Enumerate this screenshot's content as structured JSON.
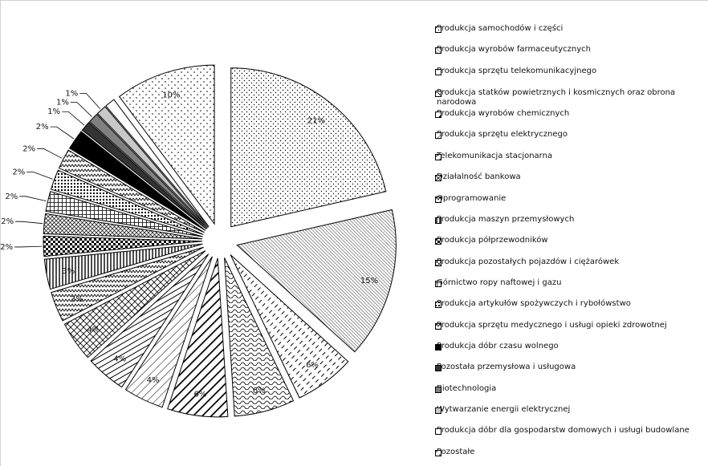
{
  "chart_data": {
    "type": "pie",
    "slices": [
      {
        "name": "Produkcja samochodów i części",
        "value": 21,
        "label": "21%",
        "pattern": "dots"
      },
      {
        "name": "Produkcja wyrobów farmaceutycznych",
        "value": 15,
        "label": "15%",
        "pattern": "diag-dense"
      },
      {
        "name": "Produkcja sprzętu telekomunikacyjnego",
        "value": 6,
        "label": "6%",
        "pattern": "dashes"
      },
      {
        "name": "Produkcja statków powietrznych i kosmicznych oraz obrona narodowa",
        "value": 6,
        "label": "6%",
        "pattern": "waves"
      },
      {
        "name": "Produkcja wyrobów chemicznych",
        "value": 6,
        "label": "6%",
        "pattern": "diag-wide"
      },
      {
        "name": "Produkcja sprzętu elektrycznego",
        "value": 4,
        "label": "4%",
        "pattern": "diag-thin"
      },
      {
        "name": "Telekomunikacja stacjonarna",
        "value": 4,
        "label": "4%",
        "pattern": "hstripes"
      },
      {
        "name": "Działalność bankowa",
        "value": 4,
        "label": "4%",
        "pattern": "diamonds"
      },
      {
        "name": "Oprogramowanie",
        "value": 3,
        "label": "3%",
        "pattern": "zigzag"
      },
      {
        "name": "Produkcja maszyn przemysłowych",
        "value": 3,
        "label": "3%",
        "pattern": "vstripes"
      },
      {
        "name": "Produkcja półprzewodników",
        "value": 2,
        "label": "2%",
        "pattern": "checker"
      },
      {
        "name": "Produkcja pozostałych pojazdów i ciężarówek",
        "value": 2,
        "label": "2%",
        "pattern": "crosshatch"
      },
      {
        "name": "Górnictwo ropy naftowej i gazu",
        "value": 2,
        "label": "2%",
        "pattern": "grid"
      },
      {
        "name": "Produkcja artykułów spożywczych i rybołówstwo",
        "value": 2,
        "label": "2%",
        "pattern": "dotgrid"
      },
      {
        "name": "Produkcja sprzętu medycznego i usługi opieki zdrowotnej",
        "value": 2,
        "label": "2%",
        "pattern": "zigzag"
      },
      {
        "name": "Produkcja dóbr czasu wolnego",
        "value": 2,
        "label": "2%",
        "pattern": "solid-black"
      },
      {
        "name": "Pozostała przemysłowa i usługowa",
        "value": 1,
        "label": "1%",
        "pattern": "solid-dark"
      },
      {
        "name": "Biotechnologia",
        "value": 1,
        "label": "1%",
        "pattern": "solid-gray"
      },
      {
        "name": "Wytwarzanie energii elektrycznej",
        "value": 1,
        "label": "1%",
        "pattern": "solid-light"
      },
      {
        "name": "Produkcja dóbr dla gospodarstw domowych i usługi budowlane",
        "value": 1,
        "label": "",
        "pattern": "white"
      },
      {
        "name": "Pozostałe",
        "value": 10,
        "label": "10%",
        "pattern": "dots-sparse"
      }
    ],
    "legend_position": "right",
    "start_angle_deg": 0,
    "direction": "clockwise",
    "exploded": true
  }
}
